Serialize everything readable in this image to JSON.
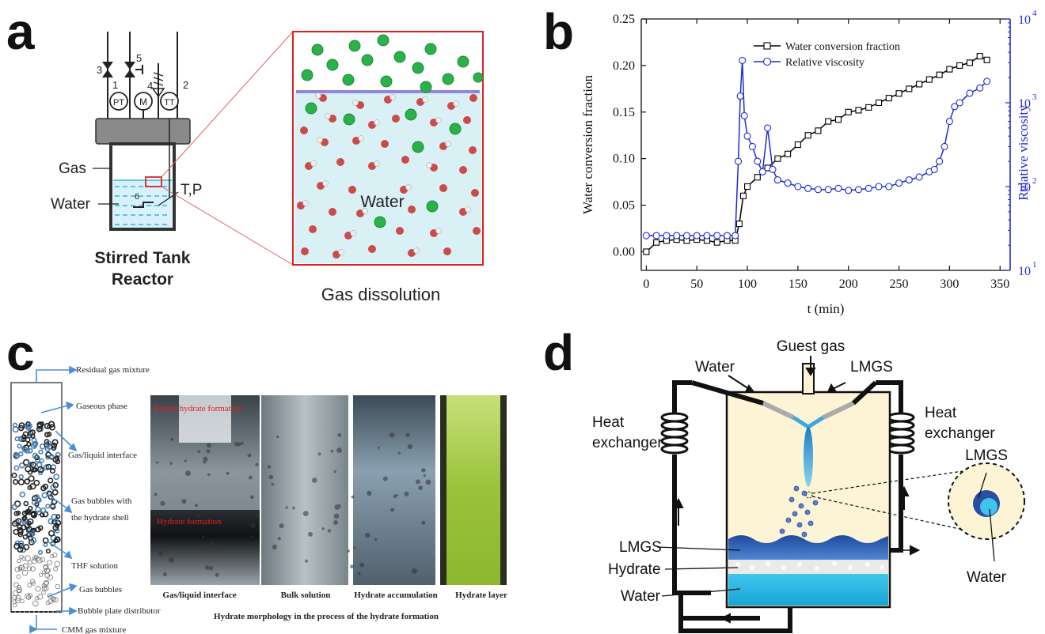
{
  "panels": {
    "a": {
      "letter": "a",
      "gas": "Gas",
      "water": "Water",
      "tp": "T,P",
      "reactor_line1": "Stirred Tank",
      "reactor_line2": "Reactor",
      "inset_water": "Water",
      "caption": "Gas dissolution",
      "valve_labels": [
        "3",
        "5",
        "4",
        "1",
        "2",
        "6"
      ],
      "sensor_labels": [
        "PT",
        "M",
        "TT"
      ]
    },
    "b": {
      "letter": "b"
    },
    "c": {
      "letter": "c",
      "labels": [
        "Residual gas mixture",
        "Gaseous phase",
        "Gas/liquid interface",
        "Gas bubbles with",
        "the hydrate shell",
        "THF solution",
        "Gas bubbles",
        "Bubble plate distributor",
        "CMM gas mixture"
      ],
      "photo_red_labels": [
        "Before hydrate formation",
        "Hydrate formation"
      ],
      "photo_captions": [
        "Gas/liquid interface",
        "Bulk solution",
        "Hydrate accumulation",
        "Hydrate layer"
      ],
      "photo_title": "Hydrate morphology in the process of the hydrate formation"
    },
    "d": {
      "letter": "d",
      "guest_gas": "Guest gas",
      "water_top": "Water",
      "lmgs_top": "LMGS",
      "heat_left_1": "Heat",
      "heat_left_2": "exchanger",
      "heat_right_1": "Heat",
      "heat_right_2": "exchanger",
      "lmgs_layer": "LMGS",
      "hydrate_layer": "Hydrate",
      "water_layer": "Water",
      "inset_lmgs": "LMGS",
      "inset_water": "Water"
    }
  },
  "chart_data": {
    "type": "line",
    "xlabel": "t (min)",
    "ylabel": "Water conversion fraction",
    "y2label": "Relative viscosity",
    "xlim": [
      -5,
      360
    ],
    "ylim": [
      -0.02,
      0.25
    ],
    "y2scale": "log",
    "y2lim": [
      10,
      10000
    ],
    "xticks": [
      "0",
      "50",
      "100",
      "150",
      "200",
      "250",
      "300",
      "350"
    ],
    "yticks": [
      "0.00",
      "0.05",
      "0.10",
      "0.15",
      "0.20",
      "0.25"
    ],
    "y2ticks": [
      "10",
      "10",
      "10",
      "10"
    ],
    "y2tick_exponents": [
      "1",
      "2",
      "3",
      "4"
    ],
    "legend_position": "top-center",
    "series": [
      {
        "name": "Water conversion fraction",
        "axis": "left",
        "color": "#000000",
        "marker": "square",
        "x": [
          0,
          10,
          20,
          30,
          40,
          50,
          60,
          70,
          80,
          88,
          92,
          96,
          100,
          110,
          120,
          130,
          140,
          150,
          160,
          170,
          180,
          190,
          200,
          210,
          220,
          230,
          240,
          250,
          260,
          270,
          280,
          290,
          300,
          310,
          320,
          330,
          337
        ],
        "y": [
          0.0,
          0.01,
          0.012,
          0.013,
          0.012,
          0.013,
          0.012,
          0.01,
          0.012,
          0.012,
          0.03,
          0.06,
          0.07,
          0.08,
          0.09,
          0.1,
          0.105,
          0.115,
          0.125,
          0.13,
          0.14,
          0.142,
          0.15,
          0.152,
          0.155,
          0.16,
          0.165,
          0.17,
          0.175,
          0.18,
          0.185,
          0.19,
          0.196,
          0.2,
          0.203,
          0.21,
          0.206
        ]
      },
      {
        "name": "Relative viscosity",
        "axis": "right",
        "color": "#1c2bd6",
        "marker": "circle",
        "x": [
          0,
          10,
          20,
          30,
          40,
          50,
          60,
          70,
          80,
          88,
          91,
          93,
          95,
          97,
          100,
          105,
          110,
          115,
          120,
          125,
          130,
          140,
          150,
          160,
          170,
          180,
          190,
          200,
          210,
          220,
          230,
          240,
          250,
          260,
          270,
          280,
          285,
          290,
          295,
          300,
          305,
          310,
          320,
          330,
          337
        ],
        "y": [
          26,
          26,
          26,
          26,
          26,
          26,
          26,
          26,
          26,
          26,
          200,
          1200,
          3200,
          700,
          400,
          300,
          200,
          150,
          500,
          160,
          120,
          110,
          100,
          95,
          92,
          92,
          95,
          90,
          92,
          95,
          100,
          100,
          110,
          120,
          130,
          150,
          160,
          200,
          300,
          600,
          900,
          1000,
          1300,
          1500,
          1800
        ]
      }
    ]
  }
}
